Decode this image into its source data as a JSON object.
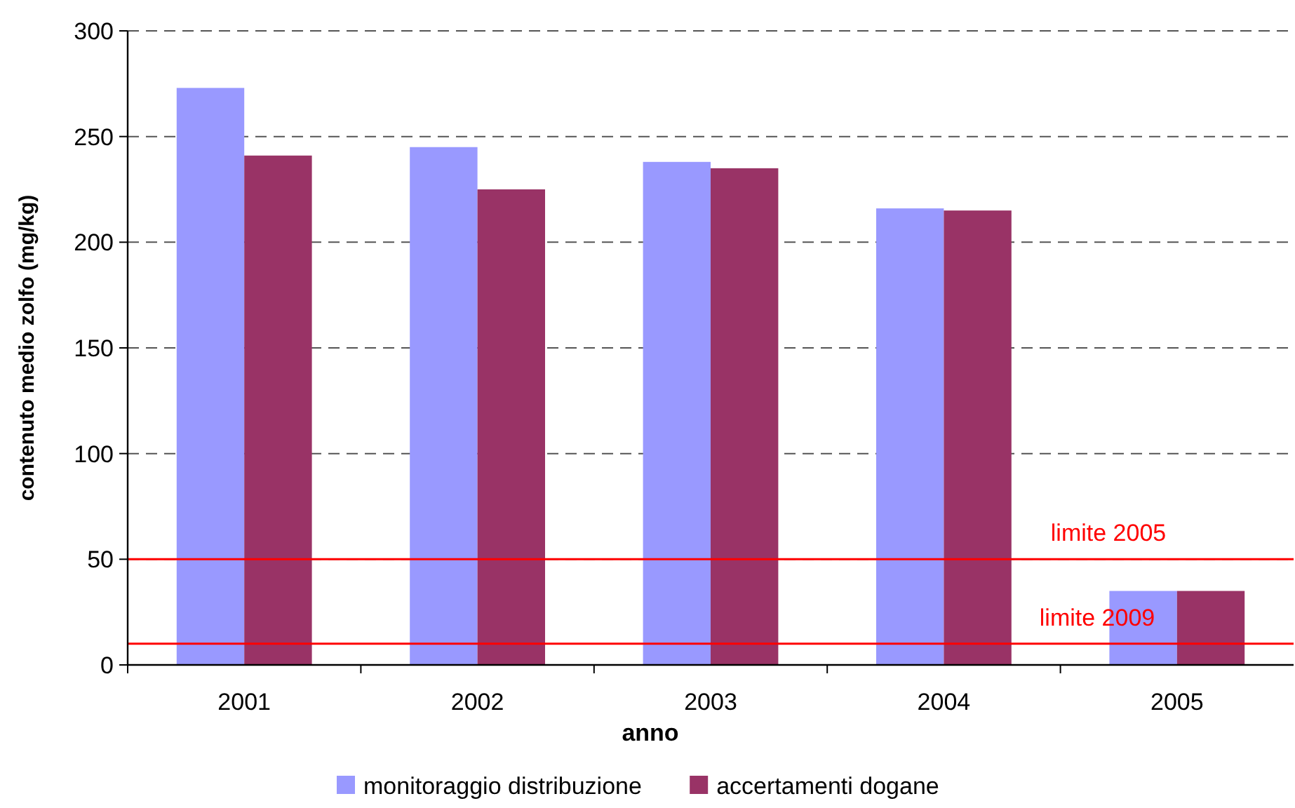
{
  "chart_data": {
    "type": "bar",
    "xlabel": "anno",
    "ylabel": "contenuto medio zolfo (mg/kg)",
    "categories": [
      "2001",
      "2002",
      "2003",
      "2004",
      "2005"
    ],
    "series": [
      {
        "name": "monitoraggio distribuzione",
        "color": "#9999ff",
        "values": [
          273,
          245,
          238,
          216,
          35
        ]
      },
      {
        "name": "accertamenti dogane",
        "color": "#993366",
        "values": [
          241,
          225,
          235,
          215,
          35
        ]
      }
    ],
    "ylim": [
      0,
      300
    ],
    "yticks": [
      0,
      50,
      100,
      150,
      200,
      250,
      300
    ],
    "grid": "y",
    "legend": "bottom",
    "ref_lines": [
      {
        "axis": "y",
        "value": 50,
        "label": "limite 2005",
        "color": "#ff0000"
      },
      {
        "axis": "y",
        "value": 10,
        "label": "limite 2009",
        "color": "#ff0000"
      }
    ]
  }
}
